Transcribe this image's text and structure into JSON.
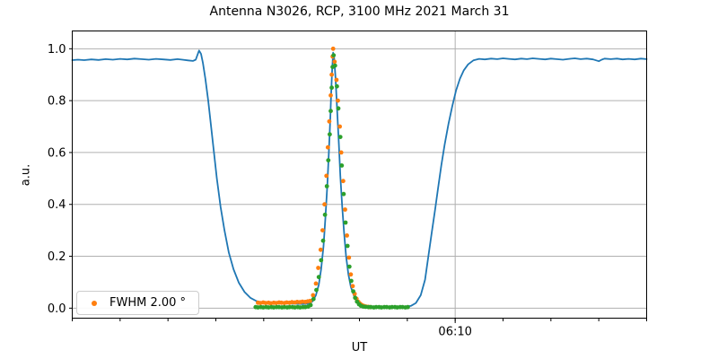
{
  "colors": {
    "line_blue": "#1f77b4",
    "fit_orange": "#ff7f0e",
    "points_green": "#2ca02c",
    "grid": "#b0b0b0",
    "spine": "#000000"
  },
  "chart_data": {
    "type": "line",
    "title": "Antenna N3026, RCP, 3100 MHz 2021 March 31",
    "xlabel": "UT",
    "ylabel": "a.u.",
    "grid": true,
    "legend": {
      "location": "lower left",
      "entries": [
        {
          "label": "FWHM 2.00 °",
          "marker": "dot",
          "color": "#ff7f0e"
        }
      ]
    },
    "x_axis": {
      "unit": "minutes from left edge (UT clock)",
      "range": [
        0,
        12
      ],
      "minor_tick_step": 1,
      "major_ticks": [
        {
          "value": 8,
          "label": "06:10"
        }
      ]
    },
    "y_axis": {
      "lim": [
        -0.0386,
        1.0686
      ],
      "ticks": [
        {
          "value": 0.0,
          "label": "0.0"
        },
        {
          "value": 0.2,
          "label": "0.2"
        },
        {
          "value": 0.4,
          "label": "0.4"
        },
        {
          "value": 0.6,
          "label": "0.6"
        },
        {
          "value": 0.8,
          "label": "0.8"
        },
        {
          "value": 1.0,
          "label": "1.0"
        }
      ]
    },
    "series": [
      {
        "name": "drift-scan-line",
        "style": "line",
        "color": "#1f77b4",
        "points": [
          [
            0,
            0.956
          ],
          [
            0.12,
            0.958
          ],
          [
            0.25,
            0.956
          ],
          [
            0.4,
            0.959
          ],
          [
            0.55,
            0.957
          ],
          [
            0.7,
            0.96
          ],
          [
            0.85,
            0.958
          ],
          [
            1.0,
            0.961
          ],
          [
            1.15,
            0.959
          ],
          [
            1.3,
            0.962
          ],
          [
            1.45,
            0.96
          ],
          [
            1.6,
            0.958
          ],
          [
            1.75,
            0.961
          ],
          [
            1.9,
            0.959
          ],
          [
            2.05,
            0.957
          ],
          [
            2.2,
            0.96
          ],
          [
            2.3,
            0.958
          ],
          [
            2.42,
            0.955
          ],
          [
            2.52,
            0.953
          ],
          [
            2.58,
            0.958
          ],
          [
            2.62,
            0.978
          ],
          [
            2.65,
            0.993
          ],
          [
            2.69,
            0.98
          ],
          [
            2.73,
            0.945
          ],
          [
            2.78,
            0.885
          ],
          [
            2.84,
            0.8
          ],
          [
            2.9,
            0.7
          ],
          [
            2.96,
            0.6
          ],
          [
            3.02,
            0.5
          ],
          [
            3.1,
            0.39
          ],
          [
            3.18,
            0.3
          ],
          [
            3.27,
            0.215
          ],
          [
            3.37,
            0.15
          ],
          [
            3.48,
            0.098
          ],
          [
            3.6,
            0.062
          ],
          [
            3.72,
            0.04
          ],
          [
            3.85,
            0.027
          ],
          [
            4.0,
            0.021
          ],
          [
            4.2,
            0.019
          ],
          [
            4.4,
            0.018
          ],
          [
            4.6,
            0.017
          ],
          [
            4.8,
            0.016
          ],
          [
            4.95,
            0.017
          ],
          [
            5.02,
            0.026
          ],
          [
            5.09,
            0.05
          ],
          [
            5.15,
            0.09
          ],
          [
            5.2,
            0.15
          ],
          [
            5.25,
            0.24
          ],
          [
            5.29,
            0.35
          ],
          [
            5.33,
            0.48
          ],
          [
            5.36,
            0.6
          ],
          [
            5.39,
            0.73
          ],
          [
            5.41,
            0.83
          ],
          [
            5.43,
            0.92
          ],
          [
            5.45,
            0.985
          ],
          [
            5.47,
            0.97
          ],
          [
            5.5,
            0.89
          ],
          [
            5.53,
            0.78
          ],
          [
            5.57,
            0.63
          ],
          [
            5.6,
            0.51
          ],
          [
            5.64,
            0.39
          ],
          [
            5.68,
            0.29
          ],
          [
            5.72,
            0.2
          ],
          [
            5.77,
            0.13
          ],
          [
            5.82,
            0.082
          ],
          [
            5.88,
            0.05
          ],
          [
            5.94,
            0.03
          ],
          [
            6.0,
            0.018
          ],
          [
            6.08,
            0.01
          ],
          [
            6.18,
            0.006
          ],
          [
            6.35,
            0.004
          ],
          [
            6.55,
            0.004
          ],
          [
            6.75,
            0.004
          ],
          [
            6.95,
            0.005
          ],
          [
            7.08,
            0.009
          ],
          [
            7.18,
            0.02
          ],
          [
            7.28,
            0.05
          ],
          [
            7.37,
            0.11
          ],
          [
            7.44,
            0.2
          ],
          [
            7.51,
            0.29
          ],
          [
            7.58,
            0.38
          ],
          [
            7.64,
            0.46
          ],
          [
            7.71,
            0.55
          ],
          [
            7.78,
            0.63
          ],
          [
            7.86,
            0.71
          ],
          [
            7.94,
            0.78
          ],
          [
            8.02,
            0.84
          ],
          [
            8.1,
            0.885
          ],
          [
            8.18,
            0.917
          ],
          [
            8.27,
            0.94
          ],
          [
            8.38,
            0.955
          ],
          [
            8.5,
            0.961
          ],
          [
            8.62,
            0.959
          ],
          [
            8.75,
            0.962
          ],
          [
            8.88,
            0.96
          ],
          [
            9.0,
            0.963
          ],
          [
            9.12,
            0.961
          ],
          [
            9.25,
            0.959
          ],
          [
            9.38,
            0.962
          ],
          [
            9.5,
            0.96
          ],
          [
            9.62,
            0.963
          ],
          [
            9.75,
            0.961
          ],
          [
            9.88,
            0.959
          ],
          [
            10.0,
            0.962
          ],
          [
            10.12,
            0.96
          ],
          [
            10.25,
            0.958
          ],
          [
            10.38,
            0.961
          ],
          [
            10.5,
            0.963
          ],
          [
            10.62,
            0.96
          ],
          [
            10.75,
            0.962
          ],
          [
            10.88,
            0.959
          ],
          [
            11.0,
            0.952
          ],
          [
            11.06,
            0.958
          ],
          [
            11.12,
            0.962
          ],
          [
            11.25,
            0.96
          ],
          [
            11.38,
            0.962
          ],
          [
            11.5,
            0.959
          ],
          [
            11.62,
            0.961
          ],
          [
            11.75,
            0.959
          ],
          [
            11.88,
            0.962
          ],
          [
            12,
            0.96
          ]
        ]
      },
      {
        "name": "gaussian-fit-orange",
        "style": "scatter",
        "color": "#ff7f0e",
        "points": [
          [
            3.88,
            0.021
          ],
          [
            3.93,
            0.02
          ],
          [
            3.99,
            0.022
          ],
          [
            4.04,
            0.02
          ],
          [
            4.1,
            0.021
          ],
          [
            4.15,
            0.019
          ],
          [
            4.21,
            0.021
          ],
          [
            4.26,
            0.02
          ],
          [
            4.32,
            0.022
          ],
          [
            4.37,
            0.021
          ],
          [
            4.43,
            0.02
          ],
          [
            4.48,
            0.022
          ],
          [
            4.54,
            0.021
          ],
          [
            4.59,
            0.023
          ],
          [
            4.65,
            0.022
          ],
          [
            4.7,
            0.024
          ],
          [
            4.76,
            0.023
          ],
          [
            4.81,
            0.025
          ],
          [
            4.87,
            0.024
          ],
          [
            4.92,
            0.026
          ],
          [
            4.97,
            0.028
          ],
          [
            5.03,
            0.05
          ],
          [
            5.09,
            0.095
          ],
          [
            5.14,
            0.155
          ],
          [
            5.19,
            0.225
          ],
          [
            5.23,
            0.3
          ],
          [
            5.27,
            0.4
          ],
          [
            5.31,
            0.51
          ],
          [
            5.34,
            0.62
          ],
          [
            5.37,
            0.72
          ],
          [
            5.4,
            0.82
          ],
          [
            5.42,
            0.9
          ],
          [
            5.44,
            0.97
          ],
          [
            5.45,
            1.0
          ],
          [
            5.48,
            0.95
          ],
          [
            5.52,
            0.88
          ],
          [
            5.55,
            0.8
          ],
          [
            5.59,
            0.7
          ],
          [
            5.62,
            0.6
          ],
          [
            5.66,
            0.49
          ],
          [
            5.7,
            0.38
          ],
          [
            5.74,
            0.28
          ],
          [
            5.78,
            0.195
          ],
          [
            5.82,
            0.13
          ],
          [
            5.86,
            0.085
          ],
          [
            5.9,
            0.055
          ],
          [
            5.94,
            0.036
          ],
          [
            5.98,
            0.024
          ],
          [
            6.02,
            0.016
          ],
          [
            6.06,
            0.011
          ],
          [
            6.1,
            0.008
          ],
          [
            6.14,
            0.006
          ],
          [
            6.18,
            0.005
          ],
          [
            6.22,
            0.004
          ]
        ]
      },
      {
        "name": "data-points-green",
        "style": "scatter",
        "color": "#2ca02c",
        "points": [
          [
            3.83,
            0.004
          ],
          [
            3.88,
            0.003
          ],
          [
            3.94,
            0.004
          ],
          [
            3.99,
            0.003
          ],
          [
            4.05,
            0.004
          ],
          [
            4.1,
            0.003
          ],
          [
            4.16,
            0.004
          ],
          [
            4.21,
            0.003
          ],
          [
            4.27,
            0.004
          ],
          [
            4.32,
            0.004
          ],
          [
            4.38,
            0.003
          ],
          [
            4.43,
            0.004
          ],
          [
            4.49,
            0.003
          ],
          [
            4.54,
            0.004
          ],
          [
            4.6,
            0.004
          ],
          [
            4.65,
            0.003
          ],
          [
            4.71,
            0.004
          ],
          [
            4.76,
            0.003
          ],
          [
            4.82,
            0.004
          ],
          [
            4.87,
            0.004
          ],
          [
            4.93,
            0.006
          ],
          [
            4.98,
            0.012
          ],
          [
            5.04,
            0.035
          ],
          [
            5.1,
            0.07
          ],
          [
            5.15,
            0.12
          ],
          [
            5.2,
            0.185
          ],
          [
            5.24,
            0.26
          ],
          [
            5.28,
            0.36
          ],
          [
            5.32,
            0.47
          ],
          [
            5.35,
            0.57
          ],
          [
            5.38,
            0.67
          ],
          [
            5.4,
            0.76
          ],
          [
            5.42,
            0.85
          ],
          [
            5.44,
            0.93
          ],
          [
            5.46,
            0.975
          ],
          [
            5.49,
            0.935
          ],
          [
            5.53,
            0.855
          ],
          [
            5.56,
            0.77
          ],
          [
            5.6,
            0.66
          ],
          [
            5.63,
            0.55
          ],
          [
            5.67,
            0.44
          ],
          [
            5.71,
            0.33
          ],
          [
            5.75,
            0.24
          ],
          [
            5.79,
            0.16
          ],
          [
            5.83,
            0.105
          ],
          [
            5.87,
            0.065
          ],
          [
            5.91,
            0.04
          ],
          [
            5.95,
            0.025
          ],
          [
            5.99,
            0.015
          ],
          [
            6.03,
            0.009
          ],
          [
            6.08,
            0.006
          ],
          [
            6.13,
            0.005
          ],
          [
            6.19,
            0.004
          ],
          [
            6.24,
            0.004
          ],
          [
            6.3,
            0.003
          ],
          [
            6.35,
            0.004
          ],
          [
            6.41,
            0.004
          ],
          [
            6.46,
            0.003
          ],
          [
            6.52,
            0.004
          ],
          [
            6.57,
            0.004
          ],
          [
            6.63,
            0.003
          ],
          [
            6.68,
            0.004
          ],
          [
            6.74,
            0.004
          ],
          [
            6.79,
            0.003
          ],
          [
            6.85,
            0.004
          ],
          [
            6.9,
            0.004
          ],
          [
            6.96,
            0.003
          ],
          [
            7.01,
            0.004
          ]
        ]
      }
    ]
  }
}
